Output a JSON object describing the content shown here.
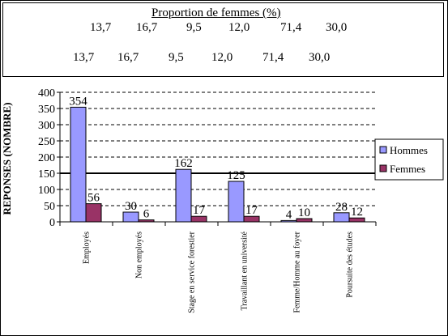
{
  "proportion_box": {
    "title": "Proportion de femmes (%)",
    "row1": [
      "13,7",
      "16,7",
      "9,5",
      "12,0",
      "71,4",
      "30,0"
    ],
    "row2": [
      "13,7",
      "16,7",
      "9,5",
      "12,0",
      "71,4",
      "30,0"
    ]
  },
  "chart_data": {
    "type": "bar",
    "categories": [
      "Employés",
      "Non employés",
      "Stage en service forestier",
      "Travaillant en université",
      "Femme/Homme au foyer",
      "Poursuite des études"
    ],
    "series": [
      {
        "name": "Hommes",
        "values": [
          354,
          30,
          162,
          125,
          4,
          28
        ],
        "color": "#9999ff"
      },
      {
        "name": "Femmes",
        "values": [
          56,
          6,
          17,
          17,
          10,
          12
        ],
        "color": "#993366"
      }
    ],
    "ylabel": "REPONSES (NOMBRE)",
    "ylim": [
      0,
      400
    ],
    "yticks": [
      0,
      50,
      100,
      150,
      200,
      250,
      300,
      350,
      400
    ],
    "reference_line": 150,
    "grid": "dashed horizontal",
    "legend_position": "right"
  }
}
